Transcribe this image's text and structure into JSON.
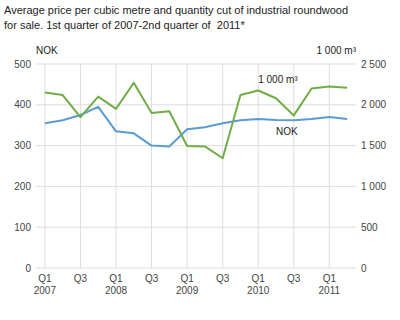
{
  "chart_data": {
    "type": "line",
    "title": "Average price per cubic metre and quantity cut of industrial roundwood",
    "subtitle": "for sale. 1st quarter of 2007-2nd quarter of  2011*",
    "ylabel": "NOK",
    "y2label": "1 000 m³",
    "categories": [
      "Q1\n2007",
      null,
      "Q3",
      null,
      "Q1\n2008",
      null,
      "Q3",
      null,
      "Q1\n2009",
      null,
      "Q3",
      null,
      "Q1\n2010",
      null,
      "Q3",
      null,
      "Q1\n2011",
      null
    ],
    "series": [
      {
        "name": "NOK",
        "color": "#5b9bd5",
        "values": [
          355,
          362,
          375,
          395,
          335,
          330,
          300,
          298,
          340,
          345,
          355,
          362,
          365,
          363,
          362,
          365,
          370,
          365
        ]
      },
      {
        "name": "1 000 m³",
        "color": "#70ad47",
        "axis": "y2",
        "values": [
          2150,
          2120,
          1850,
          2100,
          1950,
          2270,
          1900,
          1920,
          1495,
          1490,
          1345,
          2120,
          2175,
          2080,
          1870,
          2200,
          2225,
          2210
        ]
      }
    ],
    "ylim": [
      0,
      500
    ],
    "yticks": [
      0,
      100,
      200,
      300,
      400,
      500
    ],
    "y2lim": [
      0,
      2500
    ],
    "y2ticks": [
      0,
      500,
      {
        "value": 1000,
        "label": "1 000"
      },
      {
        "value": 1500,
        "label": "1 500"
      },
      {
        "value": 2000,
        "label": "2 000"
      },
      {
        "value": 2500,
        "label": "2 500"
      }
    ],
    "grid": true
  }
}
